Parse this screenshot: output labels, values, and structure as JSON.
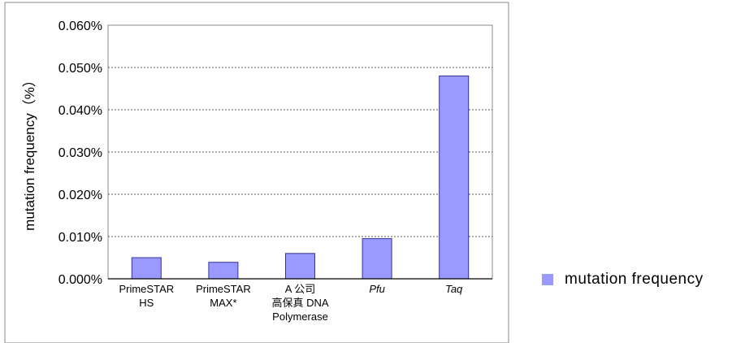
{
  "chart_data": {
    "type": "bar",
    "ylabel": "mutation frequency（%）",
    "xlabel": "",
    "ylim": [
      0,
      0.06
    ],
    "yticks": [
      {
        "value": 0.0,
        "label": "0.000%"
      },
      {
        "value": 0.01,
        "label": "0.010%"
      },
      {
        "value": 0.02,
        "label": "0.020%"
      },
      {
        "value": 0.03,
        "label": "0.030%"
      },
      {
        "value": 0.04,
        "label": "0.040%"
      },
      {
        "value": 0.05,
        "label": "0.050%"
      },
      {
        "value": 0.06,
        "label": "0.060%"
      }
    ],
    "categories": [
      {
        "lines": [
          "PrimeSTAR",
          "HS"
        ],
        "italic": false
      },
      {
        "lines": [
          "PrimeSTAR",
          "MAX*"
        ],
        "italic": false
      },
      {
        "lines": [
          "A 公司",
          "高保真 DNA",
          "Polymerase"
        ],
        "italic": false
      },
      {
        "lines": [
          "Pfu"
        ],
        "italic": true
      },
      {
        "lines": [
          "Taq"
        ],
        "italic": true
      }
    ],
    "series": [
      {
        "name": "mutation frequency",
        "values": [
          0.005,
          0.0039,
          0.006,
          0.0095,
          0.048
        ],
        "color": "#9999ff",
        "edge": "#333399"
      }
    ],
    "grid": true,
    "legend": {
      "position": "right",
      "label": "mutation frequency"
    }
  }
}
